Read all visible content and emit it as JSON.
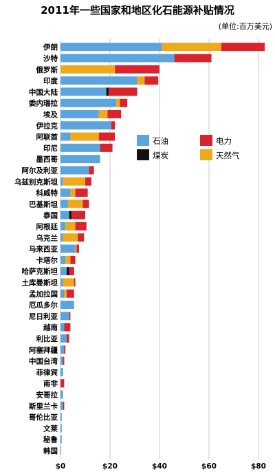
{
  "chart_data": {
    "type": "bar",
    "orientation": "horizontal",
    "stacked": true,
    "title": "2011年一些国家和地区化石能源补贴情况",
    "subtitle": "(单位:百万美元)",
    "xlim": [
      0,
      83
    ],
    "x_ticks": [
      "$0",
      "$20",
      "$40",
      "$60",
      "$80"
    ],
    "x_tick_values": [
      0,
      20,
      40,
      60,
      80
    ],
    "grid": true,
    "legend_position": "right",
    "colors": {
      "石油": "#5ba5dc",
      "煤炭": "#111111",
      "电力": "#d9232d",
      "天然气": "#eeaa1c"
    },
    "legend": [
      {
        "name": "石油",
        "key": "石油"
      },
      {
        "name": "电力",
        "key": "电力"
      },
      {
        "name": "煤炭",
        "key": "煤炭"
      },
      {
        "name": "天然气",
        "key": "天然气"
      }
    ],
    "series_order": [
      "石油",
      "煤炭",
      "天然气",
      "电力"
    ],
    "categories": [
      "伊朗",
      "沙特",
      "俄罗斯",
      "印度",
      "中国大陆",
      "委内瑞拉",
      "埃及",
      "伊拉克",
      "阿联酋",
      "印尼",
      "墨西哥",
      "阿尔及利亚",
      "乌兹别克斯坦",
      "科威特",
      "巴基斯坦",
      "泰国",
      "阿根廷",
      "乌克兰",
      "马来西亚",
      "卡塔尔",
      "哈萨克斯坦",
      "土库曼斯坦",
      "孟加拉国",
      "厄瓜多尔",
      "尼日利亚",
      "越南",
      "利比亚",
      "阿塞拜疆",
      "中国台湾",
      "菲律宾",
      "南非",
      "安哥拉",
      "斯里兰卡",
      "哥伦比亚",
      "文莱",
      "秘鲁",
      "韩国"
    ],
    "series": [
      {
        "name": "石油",
        "values": [
          41,
          46,
          0,
          31,
          18.5,
          22.5,
          15.5,
          20.5,
          4,
          16,
          16,
          11.5,
          1,
          4,
          3,
          3.5,
          2,
          1,
          6,
          2,
          2.5,
          1,
          1.5,
          5.5,
          3.5,
          1.5,
          2.5,
          1.5,
          1,
          1,
          0,
          1,
          1,
          0.5,
          0.5,
          0.5,
          0.3
        ]
      },
      {
        "name": "煤炭",
        "values": [
          0,
          0,
          0,
          0,
          1,
          0,
          0,
          0,
          0,
          0,
          0,
          0,
          0,
          0,
          0,
          1,
          0,
          0,
          0,
          0,
          1,
          0,
          0,
          0,
          0,
          0,
          0,
          0,
          0,
          0,
          0,
          0,
          0,
          0,
          0,
          0,
          0
        ]
      },
      {
        "name": "天然气",
        "values": [
          24,
          0,
          22,
          3,
          0,
          1.5,
          3.5,
          0,
          11.5,
          0,
          0,
          0,
          9,
          2,
          6,
          0,
          4,
          6,
          0.5,
          2,
          0,
          4.5,
          1,
          0,
          0,
          0,
          0,
          0,
          0,
          0,
          0,
          0,
          0,
          0,
          0,
          0,
          0
        ]
      },
      {
        "name": "电力",
        "values": [
          17.5,
          15,
          18,
          5.5,
          11.5,
          3,
          5.5,
          1.5,
          6.5,
          5,
          0,
          2,
          2.5,
          5,
          2.5,
          5.5,
          4.5,
          2.5,
          1,
          2,
          2,
          0.5,
          3,
          0,
          0.5,
          2.5,
          1,
          0.5,
          0.5,
          0,
          1.5,
          0,
          0.5,
          0,
          0,
          0,
          0
        ]
      }
    ]
  }
}
